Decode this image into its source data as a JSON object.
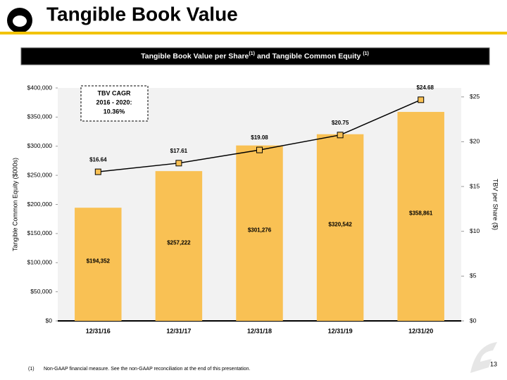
{
  "header": {
    "title": "Tangible Book Value"
  },
  "banner": {
    "text1": "Tangible Book Value per Share",
    "sup1": "(1)",
    "text2": "and Tangible Common Equity",
    "sup2": "(1)"
  },
  "chart_data": {
    "type": "bar",
    "categories": [
      "12/31/16",
      "12/31/17",
      "12/31/18",
      "12/31/19",
      "12/31/20"
    ],
    "series": [
      {
        "name": "Tangible Common Equity",
        "type": "bar",
        "color": "#f9c154",
        "values": [
          194352,
          257222,
          301276,
          320542,
          358861
        ],
        "value_labels": [
          "$194,352",
          "$257,222",
          "$301,276",
          "$320,542",
          "$358,861"
        ]
      },
      {
        "name": "TBV per Share",
        "type": "line",
        "axis": "y2",
        "color": "#f9c154",
        "values": [
          16.64,
          17.61,
          19.08,
          20.75,
          24.68
        ],
        "value_labels": [
          "$16.64",
          "$17.61",
          "$19.08",
          "$20.75",
          "$24.68"
        ]
      }
    ],
    "y_label": "Tangible Common Equity ($000s)",
    "y2_label": "TBV per Share ($)",
    "ylim": [
      0,
      400000
    ],
    "yticks": [
      {
        "value": 0,
        "label": "$0"
      },
      {
        "value": 50000,
        "label": "$50,000"
      },
      {
        "value": 100000,
        "label": "$100,000"
      },
      {
        "value": 150000,
        "label": "$150,000"
      },
      {
        "value": 200000,
        "label": "$200,000"
      },
      {
        "value": 250000,
        "label": "$250,000"
      },
      {
        "value": 300000,
        "label": "$300,000"
      },
      {
        "value": 350000,
        "label": "$350,000"
      },
      {
        "value": 400000,
        "label": "$400,000"
      }
    ],
    "y2lim": [
      0,
      26
    ],
    "y2ticks": [
      {
        "value": 0,
        "label": "$0"
      },
      {
        "value": 5,
        "label": "$5"
      },
      {
        "value": 10,
        "label": "$10"
      },
      {
        "value": 15,
        "label": "$15"
      },
      {
        "value": 20,
        "label": "$20"
      },
      {
        "value": 25,
        "label": "$25"
      }
    ],
    "annotation": [
      "TBV CAGR",
      "2016 - 2020:",
      "10.36%"
    ]
  },
  "footnote": {
    "marker": "(1)",
    "text": "Non-GAAP financial measure. See the non-GAAP reconciliation at the end of this presentation."
  },
  "page_number": "13"
}
